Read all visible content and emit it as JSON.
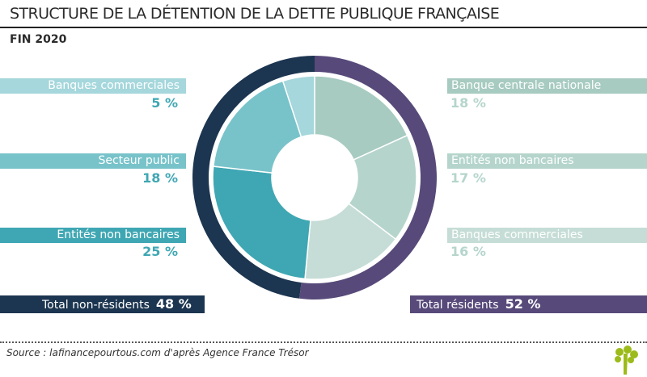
{
  "title": "STRUCTURE DE LA DÉTENTION DE LA DETTE PUBLIQUE FRANÇAISE",
  "subtitle": "FIN 2020",
  "source": "Source : lafinancepourtous.com d'après Agence France Trésor",
  "chart_data": {
    "type": "pie",
    "title": "STRUCTURE DE LA DÉTENTION DE LA DETTE PUBLIQUE FRANÇAISE",
    "subtitle": "FIN 2020",
    "outer": [
      {
        "name": "Total résidents",
        "value": 52,
        "label": "52 %",
        "color": "#574a7a"
      },
      {
        "name": "Total non-résidents",
        "value": 48,
        "label": "48 %",
        "color": "#1c3550"
      }
    ],
    "inner": [
      {
        "name": "Banque centrale nationale",
        "value": 18,
        "label": "18 %",
        "color": "#a7cbc0",
        "group": "résidents"
      },
      {
        "name": "Entités non bancaires",
        "value": 17,
        "label": "17 %",
        "color": "#b5d5cc",
        "group": "résidents"
      },
      {
        "name": "Banques commerciales",
        "value": 16,
        "label": "16 %",
        "color": "#c5ddd6",
        "group": "résidents"
      },
      {
        "name": "Entités non bancaires",
        "value": 25,
        "label": "25 %",
        "color": "#3fa7b3",
        "group": "non-résidents"
      },
      {
        "name": "Secteur public",
        "value": 18,
        "label": "18 %",
        "color": "#78c3ca",
        "group": "non-résidents"
      },
      {
        "name": "Banques commerciales",
        "value": 5,
        "label": "5 %",
        "color": "#a5d7dc",
        "group": "non-résidents"
      }
    ]
  }
}
